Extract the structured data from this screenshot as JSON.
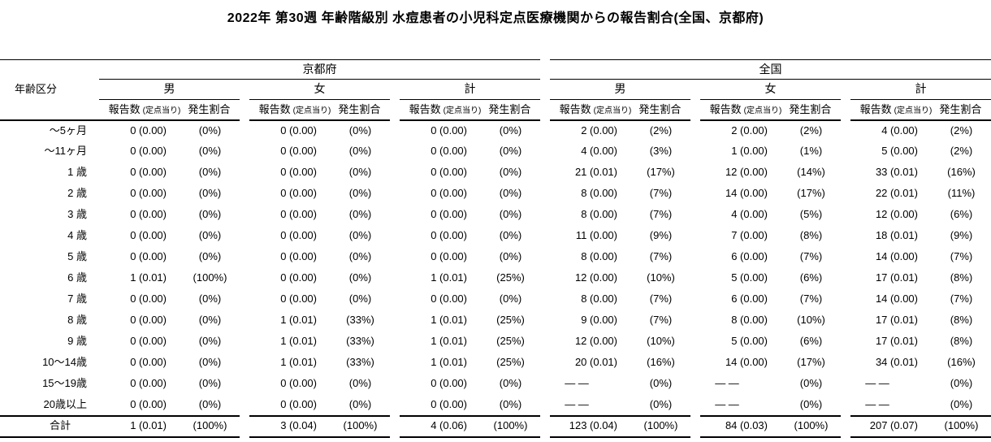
{
  "title": "2022年 第30週 年齢階級別 水痘患者の小児科定点医療機関からの報告割合(全国、京都府)",
  "colors": {
    "background": "#ffffff",
    "text": "#000000",
    "rule": "#000000"
  },
  "table": {
    "age_column_header": "年齢区分",
    "region_headers": [
      "京都府",
      "全国"
    ],
    "gender_headers": [
      "男",
      "女",
      "計"
    ],
    "metric_header": {
      "reports": "報告数",
      "reports_sub": "(定点当り)",
      "rate": "発生割合"
    },
    "cell_order": [
      "kyoto_male_reports",
      "kyoto_male_rate",
      "kyoto_female_reports",
      "kyoto_female_rate",
      "kyoto_total_reports",
      "kyoto_total_rate",
      "national_male_reports",
      "national_male_rate",
      "national_female_reports",
      "national_female_rate",
      "national_total_reports",
      "national_total_rate"
    ],
    "rows": [
      {
        "age": "～5ヶ月",
        "values": [
          "0 (0.00)",
          "(0%)",
          "0 (0.00)",
          "(0%)",
          "0 (0.00)",
          "(0%)",
          "2 (0.00)",
          "(2%)",
          "2 (0.00)",
          "(2%)",
          "4 (0.00)",
          "(2%)"
        ]
      },
      {
        "age": "～11ヶ月",
        "values": [
          "0 (0.00)",
          "(0%)",
          "0 (0.00)",
          "(0%)",
          "0 (0.00)",
          "(0%)",
          "4 (0.00)",
          "(3%)",
          "1 (0.00)",
          "(1%)",
          "5 (0.00)",
          "(2%)"
        ]
      },
      {
        "age": "1 歳",
        "values": [
          "0 (0.00)",
          "(0%)",
          "0 (0.00)",
          "(0%)",
          "0 (0.00)",
          "(0%)",
          "21 (0.01)",
          "(17%)",
          "12 (0.00)",
          "(14%)",
          "33 (0.01)",
          "(16%)"
        ]
      },
      {
        "age": "2 歳",
        "values": [
          "0 (0.00)",
          "(0%)",
          "0 (0.00)",
          "(0%)",
          "0 (0.00)",
          "(0%)",
          "8 (0.00)",
          "(7%)",
          "14 (0.00)",
          "(17%)",
          "22 (0.01)",
          "(11%)"
        ]
      },
      {
        "age": "3 歳",
        "values": [
          "0 (0.00)",
          "(0%)",
          "0 (0.00)",
          "(0%)",
          "0 (0.00)",
          "(0%)",
          "8 (0.00)",
          "(7%)",
          "4 (0.00)",
          "(5%)",
          "12 (0.00)",
          "(6%)"
        ]
      },
      {
        "age": "4 歳",
        "values": [
          "0 (0.00)",
          "(0%)",
          "0 (0.00)",
          "(0%)",
          "0 (0.00)",
          "(0%)",
          "11 (0.00)",
          "(9%)",
          "7 (0.00)",
          "(8%)",
          "18 (0.01)",
          "(9%)"
        ]
      },
      {
        "age": "5 歳",
        "values": [
          "0 (0.00)",
          "(0%)",
          "0 (0.00)",
          "(0%)",
          "0 (0.00)",
          "(0%)",
          "8 (0.00)",
          "(7%)",
          "6 (0.00)",
          "(7%)",
          "14 (0.00)",
          "(7%)"
        ]
      },
      {
        "age": "6 歳",
        "values": [
          "1 (0.01)",
          "(100%)",
          "0 (0.00)",
          "(0%)",
          "1 (0.01)",
          "(25%)",
          "12 (0.00)",
          "(10%)",
          "5 (0.00)",
          "(6%)",
          "17 (0.01)",
          "(8%)"
        ]
      },
      {
        "age": "7 歳",
        "values": [
          "0 (0.00)",
          "(0%)",
          "0 (0.00)",
          "(0%)",
          "0 (0.00)",
          "(0%)",
          "8 (0.00)",
          "(7%)",
          "6 (0.00)",
          "(7%)",
          "14 (0.00)",
          "(7%)"
        ]
      },
      {
        "age": "8 歳",
        "values": [
          "0 (0.00)",
          "(0%)",
          "1 (0.01)",
          "(33%)",
          "1 (0.01)",
          "(25%)",
          "9 (0.00)",
          "(7%)",
          "8 (0.00)",
          "(10%)",
          "17 (0.01)",
          "(8%)"
        ]
      },
      {
        "age": "9 歳",
        "values": [
          "0 (0.00)",
          "(0%)",
          "1 (0.01)",
          "(33%)",
          "1 (0.01)",
          "(25%)",
          "12 (0.00)",
          "(10%)",
          "5 (0.00)",
          "(6%)",
          "17 (0.01)",
          "(8%)"
        ]
      },
      {
        "age": "10～14歳",
        "values": [
          "0 (0.00)",
          "(0%)",
          "1 (0.01)",
          "(33%)",
          "1 (0.01)",
          "(25%)",
          "20 (0.01)",
          "(16%)",
          "14 (0.00)",
          "(17%)",
          "34 (0.01)",
          "(16%)"
        ]
      },
      {
        "age": "15～19歳",
        "values": [
          "0 (0.00)",
          "(0%)",
          "0 (0.00)",
          "(0%)",
          "0 (0.00)",
          "(0%)",
          "— —",
          "(0%)",
          "— —",
          "(0%)",
          "— —",
          "(0%)"
        ]
      },
      {
        "age": "20歳以上",
        "values": [
          "0 (0.00)",
          "(0%)",
          "0 (0.00)",
          "(0%)",
          "0 (0.00)",
          "(0%)",
          "— —",
          "(0%)",
          "— —",
          "(0%)",
          "— —",
          "(0%)"
        ]
      }
    ],
    "total_row": {
      "age": "合計",
      "values": [
        "1 (0.01)",
        "(100%)",
        "3 (0.04)",
        "(100%)",
        "4 (0.06)",
        "(100%)",
        "123 (0.04)",
        "(100%)",
        "84 (0.03)",
        "(100%)",
        "207 (0.07)",
        "(100%)"
      ]
    }
  }
}
